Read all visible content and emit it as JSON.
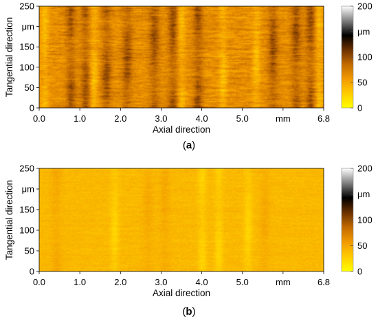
{
  "chart_data": [
    {
      "type": "heatmap",
      "panel_label": "(a)",
      "label_letter": "a",
      "xlabel": "Axial direction",
      "ylabel": "Tangential direction",
      "x_ticks": [
        "0.0",
        "1.0",
        "2.0",
        "3.0",
        "4.0",
        "5.0",
        "mm",
        "6.8"
      ],
      "y_ticks": [
        "0",
        "50",
        "100",
        "150",
        "μm",
        "250"
      ],
      "x_range": [
        0,
        6.8
      ],
      "y_range": [
        0,
        250
      ],
      "colorbar": {
        "ticks": [
          "0",
          "50",
          "100",
          "μm",
          "200"
        ],
        "range": [
          0,
          200
        ]
      },
      "surface": {
        "base_level": 65,
        "dark_streaks_at": [
          0.75,
          1.1,
          1.6,
          2.1,
          2.75,
          3.2,
          3.8,
          5.6,
          6.15,
          6.5
        ],
        "bright_streaks_at": [
          0.12,
          1.3,
          3.4,
          4.4,
          5.2,
          6.7
        ],
        "max_level": 120
      }
    },
    {
      "type": "heatmap",
      "panel_label": "(b)",
      "label_letter": "b",
      "xlabel": "Axial direction",
      "ylabel": "Tangential direction",
      "x_ticks": [
        "0.0",
        "1.0",
        "2.0",
        "3.0",
        "4.0",
        "5.0",
        "mm",
        "6.8"
      ],
      "y_ticks": [
        "0",
        "50",
        "100",
        "150",
        "μm",
        "250"
      ],
      "x_range": [
        0,
        6.8
      ],
      "y_range": [
        0,
        250
      ],
      "colorbar": {
        "ticks": [
          "0",
          "50",
          "100",
          "μm",
          "200"
        ],
        "range": [
          0,
          200
        ]
      },
      "surface": {
        "base_level": 40,
        "dark_streaks_at": [
          0.4,
          2.6,
          3.0,
          5.4
        ],
        "bright_streaks_at": [
          1.8,
          3.9,
          4.3,
          5.0
        ],
        "max_level": 55
      }
    }
  ],
  "colors": {
    "colormap_stops": [
      "#ffff00",
      "#ffcc00",
      "#f29a00",
      "#c26a00",
      "#6a3000",
      "#000000",
      "#808080",
      "#ffffff"
    ],
    "axis": "#000000",
    "text": "#000000"
  }
}
